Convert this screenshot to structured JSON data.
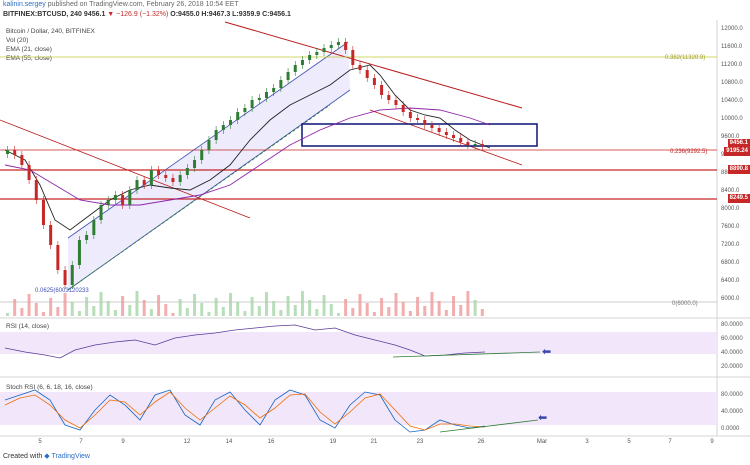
{
  "header": {
    "publisher_line": "kalinin.sergey published on TradingView.com, February 26, 2018 10:54 EET",
    "publisher": "kalinin.sergey",
    "symbol_line": "BITFINEX:BTCUSD, 240",
    "price": "9456.1",
    "change": "▼ −126.9 (−1.32%)",
    "ohlc": "O:9455.0 H:9467.3 L:9359.9 C:9456.1"
  },
  "legend": {
    "title": "Bitcoin / Dollar, 240, BITFINEX",
    "vol": "Vol (20)",
    "ema21": "EMA (21, close)",
    "ema55": "EMA (55, close)"
  },
  "annotations": {
    "fib382": "0.382(11320.9)",
    "fib236": "0.236(9292.5)",
    "fib0": "0(6000.0)",
    "low_label": "0.0625(6003120233"
  },
  "price_axis": {
    "ticks": [
      "12000.0",
      "11600.0",
      "11200.0",
      "10800.0",
      "10400.0",
      "10000.0",
      "9600.0",
      "9200.0",
      "8800.0",
      "8400.0",
      "8000.0",
      "7600.0",
      "7200.0",
      "6800.0",
      "6400.0",
      "6000.0"
    ],
    "tags": [
      {
        "text": "9456.1",
        "color": "#c62828"
      },
      {
        "text": "9195.24",
        "color": "#c62828"
      },
      {
        "text": "8890.8",
        "color": "#c62828"
      },
      {
        "text": "8249.5",
        "color": "#c62828"
      }
    ]
  },
  "rsi": {
    "label": "RSI (14, close)",
    "ticks": [
      "80.0000",
      "60.0000",
      "40.0000",
      "20.0000"
    ]
  },
  "stoch": {
    "label": "Stoch RSI (6, 6, 18, 16, close)",
    "ticks": [
      "80.0000",
      "40.0000",
      "0.0000"
    ]
  },
  "time_axis": [
    "5",
    "7",
    "9",
    "12",
    "14",
    "16",
    "19",
    "21",
    "23",
    "26",
    "Mar",
    "3",
    "5",
    "7",
    "9"
  ],
  "footer": {
    "created_with": "Created with",
    "brand": "TradingView"
  },
  "colors": {
    "up": "#2e7d32",
    "down": "#c62828",
    "channel": "#3f51b5",
    "rsi_band": "#e8d8f5",
    "ema21": "#222222",
    "ema55": "#8e24aa"
  }
}
